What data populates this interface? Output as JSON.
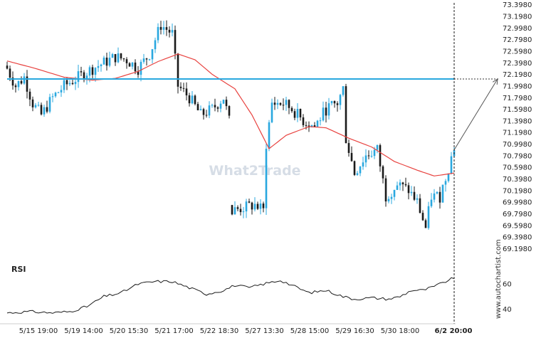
{
  "chart_data": {
    "type": "candlestick",
    "instrument_note": "",
    "price_axis": {
      "ylim": [
        69.07,
        73.43
      ],
      "tick_labels": [
        "73.3980",
        "73.1980",
        "72.9980",
        "72.7980",
        "72.5980",
        "72.3980",
        "72.1980",
        "71.9980",
        "71.7980",
        "71.5980",
        "71.3980",
        "71.1980",
        "70.9980",
        "70.7980",
        "70.5980",
        "70.3980",
        "70.1980",
        "69.9980",
        "69.7980",
        "69.5980",
        "69.3980",
        "69.1980"
      ]
    },
    "x_axis": {
      "tick_labels": [
        "5/15 19:00",
        "5/19 14:00",
        "5/20 15:30",
        "5/21 17:00",
        "5/22 18:30",
        "5/27 13:30",
        "5/28 15:00",
        "5/29 16:30",
        "5/30 18:00",
        "6/2 20:00"
      ],
      "last_label": "6/2 20:00",
      "n_bars": 158
    },
    "resistance_level": 72.12,
    "projection": {
      "from_price": 70.9,
      "to_price": 72.12
    },
    "ma_anchors": [
      [
        0,
        72.43
      ],
      [
        10,
        72.3
      ],
      [
        20,
        72.15
      ],
      [
        30,
        72.1
      ],
      [
        38,
        72.13
      ],
      [
        46,
        72.25
      ],
      [
        53,
        72.42
      ],
      [
        60,
        72.55
      ],
      [
        66,
        72.45
      ],
      [
        72,
        72.2
      ],
      [
        80,
        71.95
      ],
      [
        86,
        71.5
      ],
      [
        92,
        70.92
      ],
      [
        98,
        71.15
      ],
      [
        106,
        71.3
      ],
      [
        112,
        71.28
      ],
      [
        120,
        71.1
      ],
      [
        128,
        70.95
      ],
      [
        136,
        70.7
      ],
      [
        144,
        70.55
      ],
      [
        150,
        70.45
      ],
      [
        157,
        70.5
      ]
    ],
    "close_anchors": [
      [
        0,
        72.3
      ],
      [
        3,
        72.0
      ],
      [
        6,
        72.15
      ],
      [
        9,
        71.7
      ],
      [
        12,
        71.5
      ],
      [
        16,
        71.8
      ],
      [
        20,
        72.0
      ],
      [
        25,
        72.15
      ],
      [
        30,
        72.3
      ],
      [
        34,
        72.4
      ],
      [
        38,
        72.5
      ],
      [
        42,
        72.45
      ],
      [
        46,
        72.3
      ],
      [
        50,
        72.55
      ],
      [
        54,
        73.05
      ],
      [
        58,
        72.9
      ],
      [
        60,
        72.0
      ],
      [
        64,
        71.8
      ],
      [
        68,
        71.5
      ],
      [
        72,
        71.6
      ],
      [
        76,
        71.8
      ],
      [
        78,
        71.4
      ],
      [
        79,
        69.85
      ],
      [
        83,
        69.9
      ],
      [
        87,
        69.95
      ],
      [
        90,
        69.85
      ],
      [
        91,
        71.0
      ],
      [
        93,
        71.7
      ],
      [
        97,
        71.7
      ],
      [
        100,
        71.6
      ],
      [
        104,
        71.4
      ],
      [
        108,
        71.3
      ],
      [
        112,
        71.6
      ],
      [
        116,
        71.7
      ],
      [
        118,
        71.95
      ],
      [
        119,
        71.1
      ],
      [
        122,
        70.5
      ],
      [
        126,
        70.8
      ],
      [
        130,
        70.9
      ],
      [
        133,
        70.1
      ],
      [
        137,
        70.3
      ],
      [
        141,
        70.2
      ],
      [
        144,
        70.0
      ],
      [
        147,
        69.55
      ],
      [
        149,
        70.1
      ],
      [
        152,
        70.1
      ],
      [
        155,
        70.6
      ],
      [
        157,
        70.95
      ]
    ],
    "gaps": [
      [
        78,
        91
      ]
    ],
    "rsi": {
      "label": "RSI",
      "tick_labels": [
        "60",
        "40"
      ],
      "ylim": [
        30,
        72
      ],
      "anchors": [
        [
          0,
          37
        ],
        [
          8,
          38
        ],
        [
          16,
          37
        ],
        [
          22,
          38
        ],
        [
          28,
          42
        ],
        [
          34,
          50
        ],
        [
          40,
          53
        ],
        [
          46,
          60
        ],
        [
          52,
          62
        ],
        [
          58,
          62
        ],
        [
          64,
          57
        ],
        [
          70,
          52
        ],
        [
          76,
          55
        ],
        [
          80,
          59
        ],
        [
          85,
          57
        ],
        [
          90,
          60
        ],
        [
          96,
          63
        ],
        [
          100,
          59
        ],
        [
          106,
          53
        ],
        [
          112,
          55
        ],
        [
          118,
          50
        ],
        [
          122,
          48
        ],
        [
          128,
          49
        ],
        [
          134,
          48
        ],
        [
          138,
          50
        ],
        [
          142,
          55
        ],
        [
          146,
          55
        ],
        [
          150,
          58
        ],
        [
          154,
          62
        ],
        [
          157,
          65
        ]
      ]
    },
    "watermark": "What2Trade",
    "side_text": "www.autochartist.com",
    "colors": {
      "bull": "#29a8df",
      "bear": "#1a1a1a",
      "ma": "#e8423f",
      "resistance": "#29a8df",
      "rsi_line": "#1a1a1a",
      "projection": "#555555",
      "watermark": "#d6dde6"
    }
  }
}
